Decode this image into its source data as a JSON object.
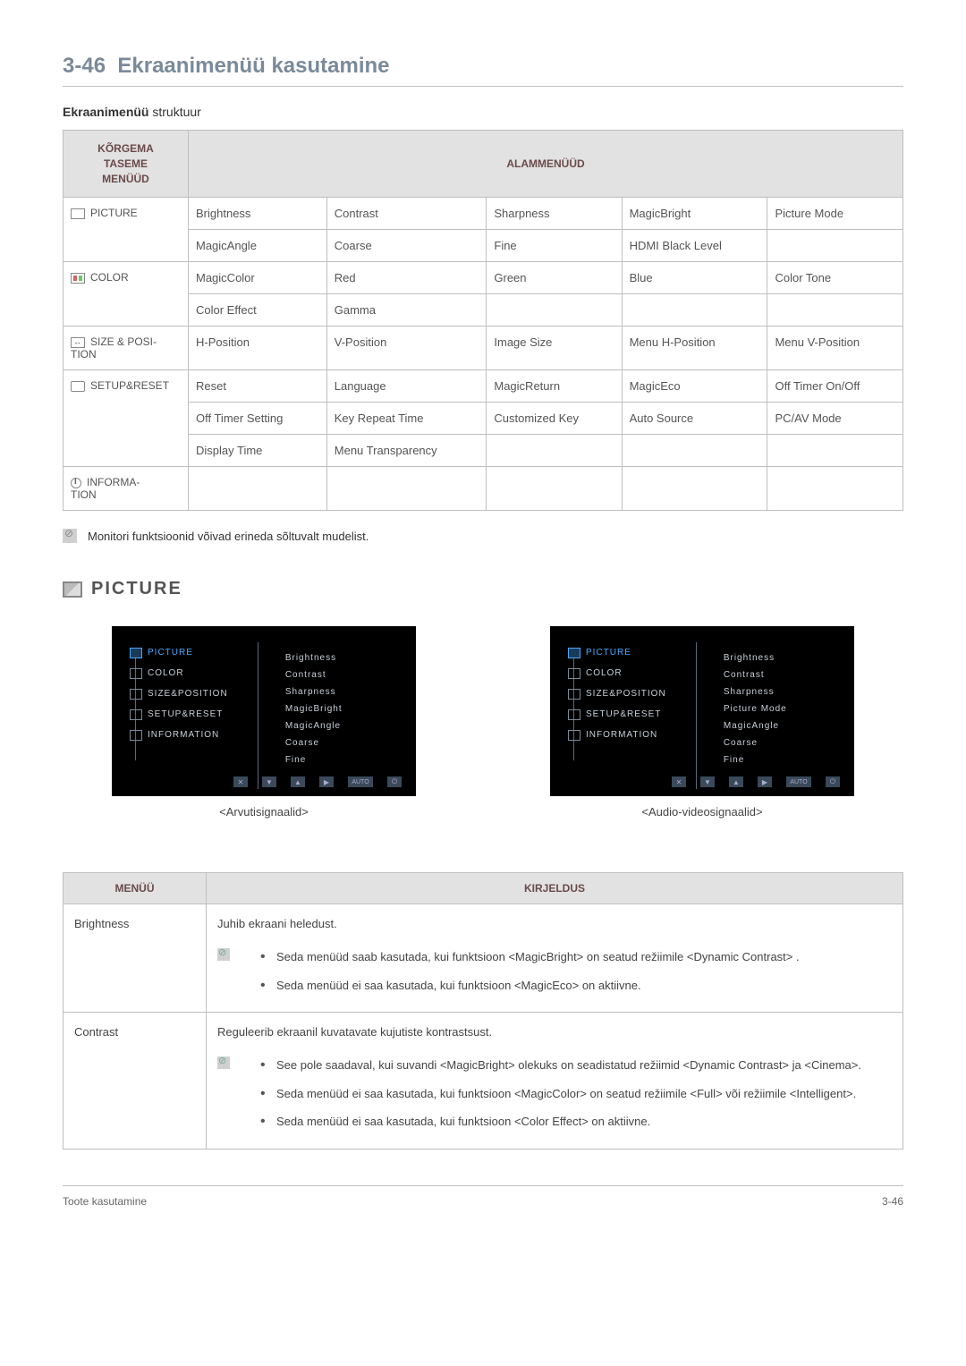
{
  "header": {
    "section_number": "3-46",
    "section_title": "Ekraanimenüü kasutamine",
    "subtitle_bold": "Ekraanimenüü",
    "subtitle_rest": " struktuur"
  },
  "struct_table": {
    "header_left_l1": "KÕRGEMA",
    "header_left_l2": "TASEME",
    "header_left_l3": "MENÜÜD",
    "header_right": "ALAMMENÜÜD",
    "rows": [
      {
        "lead": "PICTURE",
        "cells": [
          "Brightness",
          "Contrast",
          "Sharpness",
          "MagicBright",
          "Picture Mode"
        ]
      },
      {
        "lead": "",
        "cells": [
          "MagicAngle",
          "Coarse",
          "Fine",
          "HDMI Black Level",
          ""
        ]
      },
      {
        "lead": "COLOR",
        "cells": [
          "MagicColor",
          "Red",
          "Green",
          "Blue",
          "Color Tone"
        ]
      },
      {
        "lead": "",
        "cells": [
          "Color Effect",
          "Gamma",
          "",
          "",
          ""
        ]
      },
      {
        "lead": "SIZE & POSITION",
        "cells": [
          "H-Position",
          "V-Position",
          "Image Size",
          "Menu H-Position",
          "Menu V-Position"
        ]
      },
      {
        "lead": "SETUP&RESET",
        "cells": [
          "Reset",
          "Language",
          "MagicReturn",
          "MagicEco",
          "Off Timer On/Off"
        ]
      },
      {
        "lead": "",
        "cells": [
          "Off Timer Setting",
          "Key Repeat Time",
          "Customized Key",
          "Auto Source",
          "PC/AV Mode"
        ]
      },
      {
        "lead": "",
        "cells": [
          "Display Time",
          "Menu Transparency",
          "",
          "",
          ""
        ]
      },
      {
        "lead": "INFORMATION",
        "cells": [
          "",
          "",
          "",
          "",
          ""
        ]
      }
    ]
  },
  "note_text": "Monitori funktsioonid võivad erineda sõltuvalt mudelist.",
  "picture_heading": "PICTURE",
  "osd": {
    "caption_left": "<Arvutisignaalid>",
    "caption_right": "<Audio-videosignaalid>",
    "menu": {
      "picture": "PICTURE",
      "color": "COLOR",
      "size": "SIZE&POSITION",
      "setup": "SETUP&RESET",
      "info": "INFORMATION"
    },
    "sub_left": [
      "Brightness",
      "Contrast",
      "Sharpness",
      "MagicBright",
      "MagicAngle",
      "Coarse",
      "Fine"
    ],
    "sub_right": [
      "Brightness",
      "Contrast",
      "Sharpness",
      "Picture Mode",
      "MagicAngle",
      "Coarse",
      "Fine"
    ],
    "buttons": {
      "close": "✕",
      "down": "▼",
      "up": "▲",
      "right": "▶",
      "auto": "AUTO",
      "power": "⏻"
    }
  },
  "desc_table": {
    "header_menu": "MENÜÜ",
    "header_desc": "KIRJELDUS",
    "row1": {
      "menu": "Brightness",
      "lead": "Juhib ekraani heledust.",
      "b1": "Seda menüüd saab kasutada, kui funktsioon <MagicBright> on seatud režiimile <Dynamic Contrast> .",
      "b2": "Seda menüüd ei saa kasutada, kui funktsioon <MagicEco> on aktiivne."
    },
    "row2": {
      "menu": "Contrast",
      "lead": "Reguleerib ekraanil kuvatavate kujutiste kontrastsust.",
      "b1": "See pole saadaval, kui suvandi <MagicBright> olekuks on seadistatud režiimid <Dynamic Contrast> ja <Cinema>.",
      "b2": "Seda menüüd ei saa kasutada, kui funktsioon <MagicColor> on seatud režiimile <Full> või režiimile <Intelligent>.",
      "b3": "Seda menüüd ei saa kasutada, kui funktsioon <Color Effect> on aktiivne."
    }
  },
  "footer": {
    "left": "Toote kasutamine",
    "right": "3-46"
  }
}
